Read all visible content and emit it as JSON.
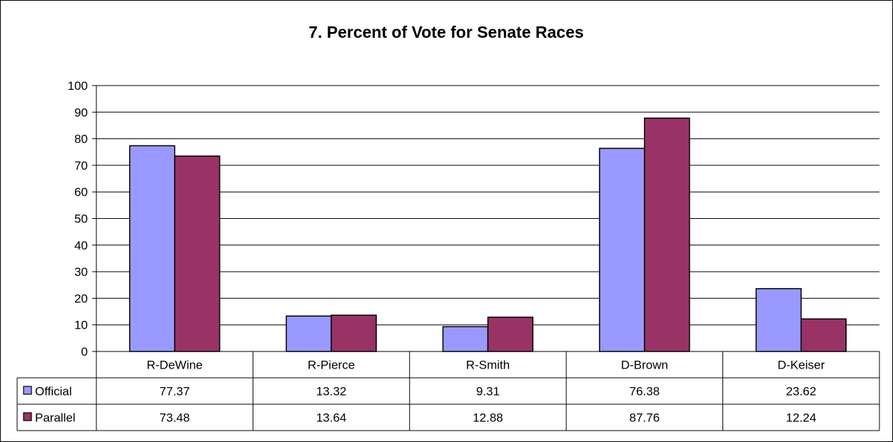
{
  "chart_data": {
    "type": "bar",
    "title": "7. Percent of Vote for Senate Races",
    "categories": [
      "R-DeWine",
      "R-Pierce",
      "R-Smith",
      "D-Brown",
      "D-Keiser"
    ],
    "series": [
      {
        "name": "Official",
        "values": [
          77.37,
          13.32,
          9.31,
          76.38,
          23.62
        ],
        "color": "#9999ff",
        "labels": [
          "77.37",
          "13.32",
          "9.31",
          "76.38",
          "23.62"
        ]
      },
      {
        "name": "Parallel",
        "values": [
          73.48,
          13.64,
          12.88,
          87.76,
          12.24
        ],
        "color": "#993366",
        "labels": [
          "73.48",
          "13.64",
          "12.88",
          "87.76",
          "12.24"
        ]
      }
    ],
    "ylim": [
      0,
      100
    ],
    "yticks": [
      "0",
      "10",
      "20",
      "30",
      "40",
      "50",
      "60",
      "70",
      "80",
      "90",
      "100"
    ],
    "xlabel": "",
    "ylabel": "",
    "grid": true,
    "legend": "data-table-left"
  }
}
